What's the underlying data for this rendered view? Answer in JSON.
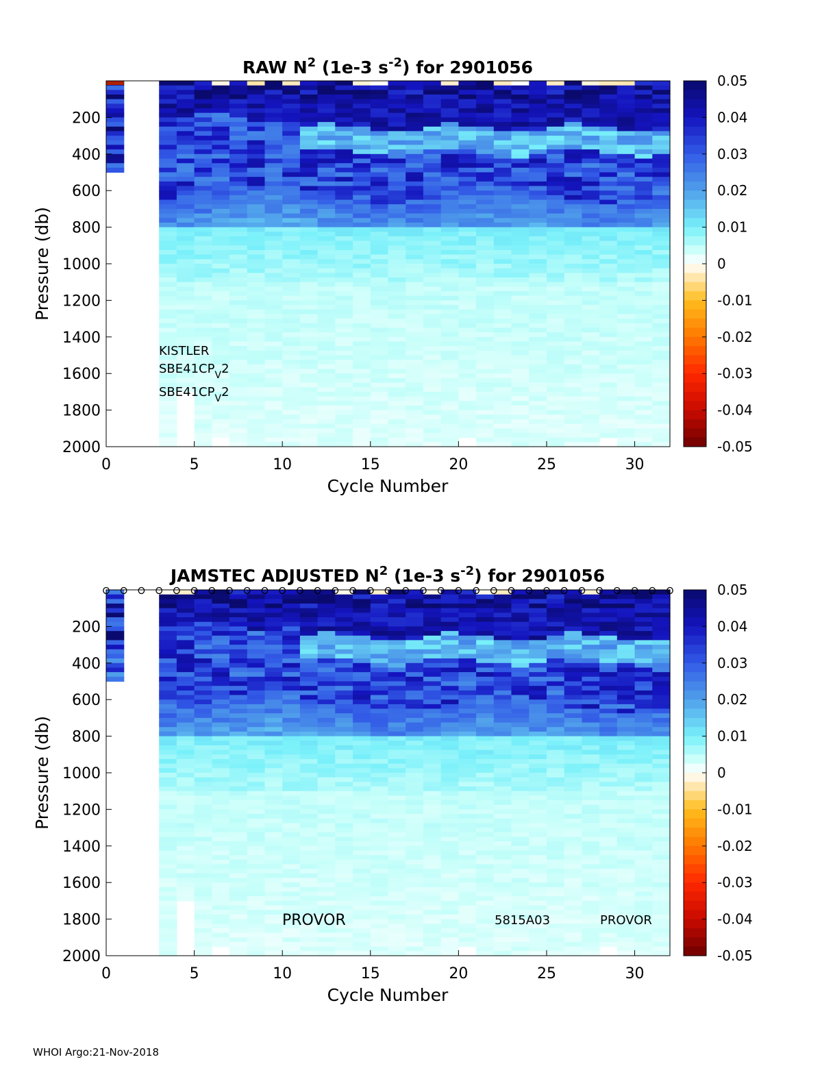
{
  "footer": "WHOI Argo:21-Nov-2018",
  "chart_data": [
    {
      "type": "heatmap",
      "title_prefix": "RAW N",
      "title_mid": " (1e-3 s",
      "title_suffix": ") for 2901056",
      "title_sup1": "2",
      "title_sup2": "-2",
      "xlabel": "Cycle Number",
      "ylabel": "Pressure (db)",
      "xlim": [
        0,
        32
      ],
      "ylim": [
        0,
        2000
      ],
      "y_reversed": true,
      "xticks": [
        0,
        5,
        10,
        15,
        20,
        25,
        30
      ],
      "yticks": [
        200,
        400,
        600,
        800,
        1000,
        1200,
        1400,
        1600,
        1800,
        2000
      ],
      "colorbar": {
        "range": [
          -0.05,
          0.05
        ],
        "ticks": [
          "0.05",
          "0.04",
          "0.03",
          "0.02",
          "0.01",
          "0",
          "-0.01",
          "-0.02",
          "-0.03",
          "-0.04",
          "-0.05"
        ],
        "colormap": "white-centered diverging (dark red - orange - white - cyan - dark blue)"
      },
      "profile_depths": [
        {
          "cycle": 0,
          "max_pressure": 500
        },
        {
          "cycle": 1,
          "max_pressure": 0
        },
        {
          "cycle": 2,
          "max_pressure": 0
        },
        {
          "cycle": 4,
          "max_pressure": 1700
        },
        {
          "cycle": 6,
          "max_pressure": 1950
        },
        {
          "cycle": 20,
          "max_pressure": 1950
        },
        {
          "cycle": 28,
          "max_pressure": 1950
        }
      ],
      "annotations": [
        {
          "text": "KISTLER",
          "style": "plain"
        },
        {
          "text": "SBE41CP",
          "sub": "V",
          "tail": "2"
        },
        {
          "text": "SBE41CP",
          "sub": "V",
          "tail": "2"
        }
      ]
    },
    {
      "type": "heatmap",
      "title_prefix": "JAMSTEC  ADJUSTED N",
      "title_mid": " (1e-3 s",
      "title_suffix": ") for 2901056",
      "title_sup1": "2",
      "title_sup2": "-2",
      "xlabel": "Cycle Number",
      "ylabel": "Pressure (db)",
      "xlim": [
        0,
        32
      ],
      "ylim": [
        0,
        2000
      ],
      "y_reversed": true,
      "xticks": [
        0,
        5,
        10,
        15,
        20,
        25,
        30
      ],
      "yticks": [
        200,
        400,
        600,
        800,
        1000,
        1200,
        1400,
        1600,
        1800,
        2000
      ],
      "colorbar": {
        "range": [
          -0.05,
          0.05
        ],
        "ticks": [
          "0.05",
          "0.04",
          "0.03",
          "0.02",
          "0.01",
          "0",
          "-0.01",
          "-0.02",
          "-0.03",
          "-0.04",
          "-0.05"
        ],
        "colormap": "white-centered diverging (dark red - orange - white - cyan - dark blue)"
      },
      "surface_markers": "o at every cycle 0-32",
      "annotations": [
        {
          "text": "PROVOR"
        },
        {
          "text": "5815A03"
        },
        {
          "text": "PROVOR"
        }
      ]
    }
  ]
}
